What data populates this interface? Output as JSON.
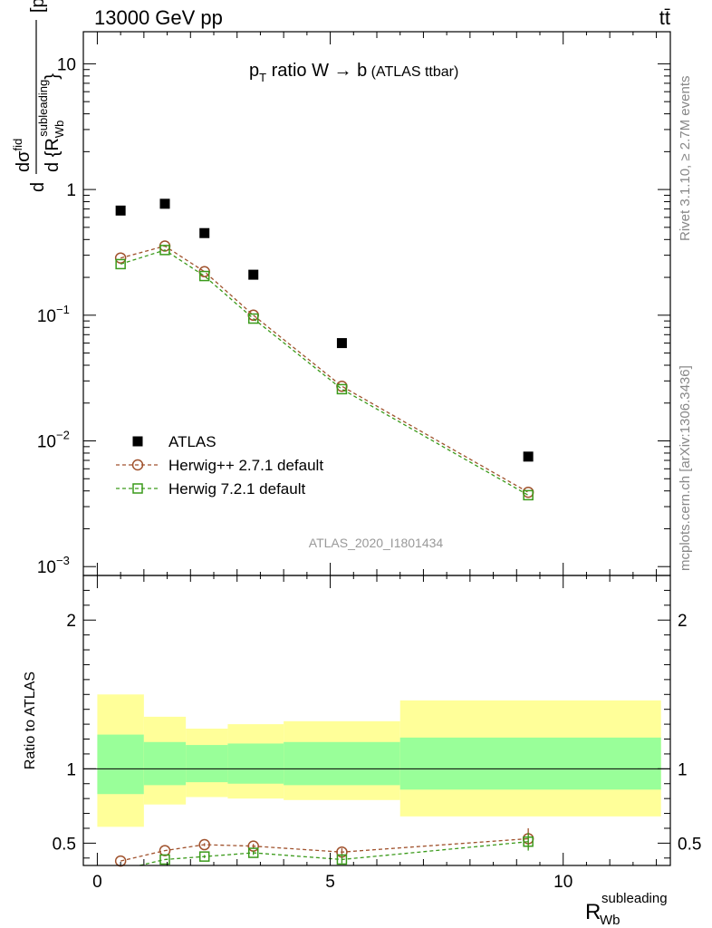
{
  "header": {
    "left": "13000 GeV pp",
    "right": "tt̄"
  },
  "side_labels": {
    "rivet": "Rivet 3.1.10, ≥ 2.7M events",
    "mcplots": "mcplots.cern.ch [arXiv:1306.3436]"
  },
  "watermark": "ATLAS_2020_I1801434",
  "chart_data": [
    {
      "type": "scatter",
      "panel": "main",
      "title": "p_T ratio W → b (ATLAS ttbar)",
      "ylabel": "dσ/d{R_Wb^subleading} [pb]",
      "yscale": "log",
      "ylim": [
        0.00085,
        18
      ],
      "xlim": [
        -0.3,
        12.3
      ],
      "ytick_labels": [
        "10^-3",
        "10^-2",
        "10^-1",
        "1",
        "10"
      ],
      "legend_position": "lower-left",
      "x": [
        0.5,
        1.45,
        2.3,
        3.35,
        5.25,
        9.25
      ],
      "series": [
        {
          "name": "ATLAS",
          "color": "#000000",
          "marker": "filled-square",
          "values": [
            0.68,
            0.77,
            0.45,
            0.21,
            0.06,
            0.0075
          ]
        },
        {
          "name": "Herwig++ 2.7.1 default",
          "color": "#a0522d",
          "marker": "open-circle",
          "values": [
            0.285,
            0.355,
            0.222,
            0.1,
            0.0272,
            0.0039
          ]
        },
        {
          "name": "Herwig 7.2.1 default",
          "color": "#3a9a1a",
          "marker": "open-square",
          "values": [
            0.255,
            0.33,
            0.205,
            0.094,
            0.0258,
            0.0037
          ]
        }
      ]
    },
    {
      "type": "line",
      "panel": "ratio",
      "ylabel": "Ratio to ATLAS",
      "xlabel": "R_Wb^subleading",
      "ylim": [
        0.35,
        2.3
      ],
      "xlim": [
        -0.3,
        12.3
      ],
      "xtick_labels": [
        "0",
        "5",
        "10"
      ],
      "ytick_labels": [
        "0.5",
        "1",
        "2"
      ],
      "bands": {
        "edges": [
          0.0,
          1.0,
          1.9,
          2.8,
          4.0,
          6.5,
          12.1
        ],
        "inner": {
          "color": "#99ff99",
          "lo": [
            0.83,
            0.89,
            0.91,
            0.9,
            0.89,
            0.86
          ],
          "hi": [
            1.23,
            1.18,
            1.16,
            1.17,
            1.18,
            1.21
          ]
        },
        "outer": {
          "color": "#ffff99",
          "lo": [
            0.61,
            0.76,
            0.81,
            0.8,
            0.79,
            0.68
          ],
          "hi": [
            1.5,
            1.35,
            1.27,
            1.3,
            1.32,
            1.46
          ]
        }
      },
      "x": [
        0.5,
        1.45,
        2.3,
        3.35,
        5.25,
        9.25
      ],
      "series": [
        {
          "name": "Herwig++ 2.7.1 default",
          "color": "#a0522d",
          "marker": "open-circle",
          "values": [
            0.38,
            0.45,
            0.49,
            0.48,
            0.44,
            0.53
          ],
          "err": [
            0,
            0,
            0.01,
            0.015,
            0.025,
            0.07
          ]
        },
        {
          "name": "Herwig 7.2.1 default",
          "color": "#3a9a1a",
          "marker": "open-square",
          "values": [
            0.32,
            0.39,
            0.41,
            0.435,
            0.39,
            0.51
          ],
          "err": [
            0,
            0,
            0.01,
            0.015,
            0.025,
            0.06
          ]
        }
      ]
    }
  ]
}
